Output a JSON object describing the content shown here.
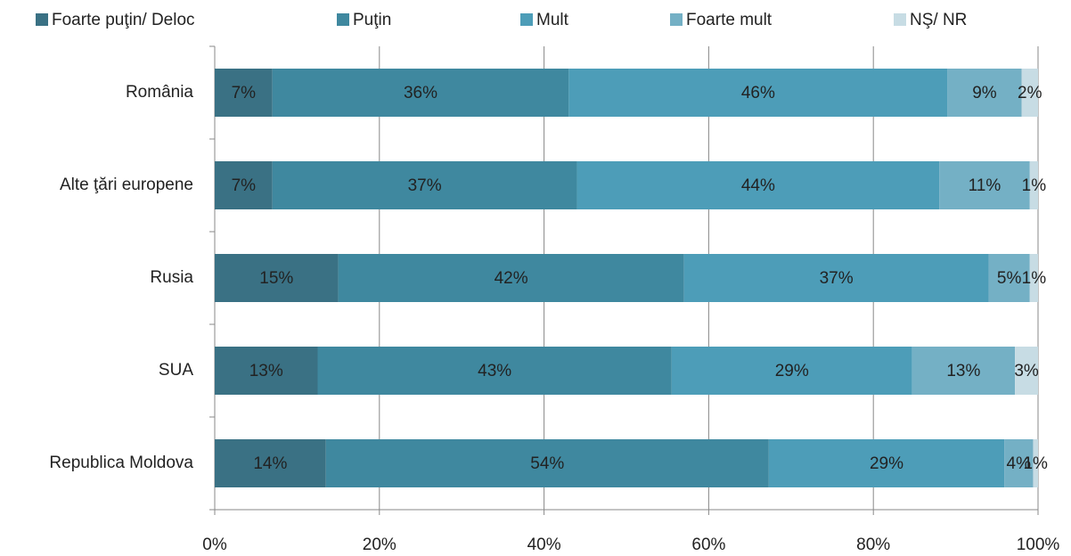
{
  "chart_data": {
    "type": "stacked-bar-horizontal",
    "categories": [
      "România",
      "Alte ţări europene",
      "Rusia",
      "SUA",
      "Republica Moldova"
    ],
    "series": [
      {
        "name": "Foarte puţin/ Deloc",
        "color": "#3a7184",
        "values": [
          7,
          7,
          15,
          12.5,
          13.5
        ],
        "value_labels": [
          "7%",
          "7%",
          "15%",
          "13%",
          "14%"
        ]
      },
      {
        "name": "Puţin",
        "color": "#3f889f",
        "values": [
          36,
          37,
          42,
          43,
          53.8
        ],
        "value_labels": [
          "36%",
          "37%",
          "42%",
          "43%",
          "54%"
        ]
      },
      {
        "name": "Mult",
        "color": "#4d9db8",
        "values": [
          46,
          44,
          37,
          29.2,
          28.6
        ],
        "value_labels": [
          "46%",
          "44%",
          "37%",
          "29%",
          "29%"
        ]
      },
      {
        "name": "Foarte mult",
        "color": "#74b0c5",
        "values": [
          9,
          11,
          5,
          12.5,
          3.5
        ],
        "value_labels": [
          "9%",
          "11%",
          "5%",
          "13%",
          "4%"
        ]
      },
      {
        "name": "NŞ/ NR",
        "color": "#c7dce4",
        "values": [
          2,
          1,
          1,
          2.8,
          0.6
        ],
        "value_labels": [
          "2%",
          "1%",
          "1%",
          "3%",
          "1%"
        ]
      }
    ],
    "xlim": [
      0,
      100
    ],
    "xticks": [
      {
        "value": 0,
        "label": "0%"
      },
      {
        "value": 20,
        "label": "20%"
      },
      {
        "value": 40,
        "label": "40%"
      },
      {
        "value": 60,
        "label": "60%"
      },
      {
        "value": 80,
        "label": "80%"
      },
      {
        "value": 100,
        "label": "100%"
      }
    ],
    "grid": true,
    "legend": "top"
  }
}
